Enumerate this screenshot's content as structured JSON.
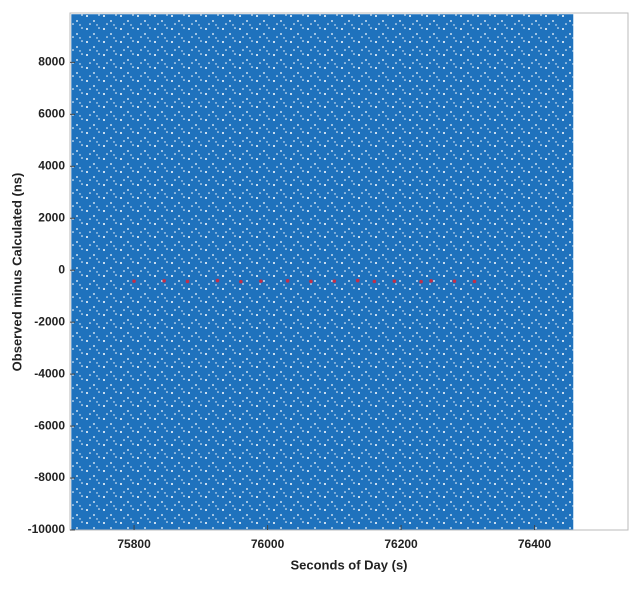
{
  "chart_data": {
    "type": "scatter",
    "xlabel": "Seconds of Day (s)",
    "ylabel": "Observed minus Calculated (ns)",
    "xlim": [
      75704,
      76540
    ],
    "ylim": [
      -10000,
      9900
    ],
    "xticks": [
      75800,
      76000,
      76200,
      76400
    ],
    "yticks": [
      -10000,
      -8000,
      -6000,
      -4000,
      -2000,
      0,
      2000,
      4000,
      6000,
      8000
    ],
    "series": [
      {
        "kind": "area",
        "color": "#1f72bd",
        "x": [
          75706,
          76458
        ],
        "values": [
          9850,
          9850
        ]
      },
      {
        "kind": "points",
        "color": "#c0304a",
        "x": [
          75800,
          75845,
          75880,
          75925,
          75960,
          75990,
          76030,
          76065,
          76100,
          76135,
          76160,
          76190,
          76230,
          76245,
          76280,
          76310
        ],
        "values": [
          -420,
          -410,
          -430,
          -400,
          -440,
          -420,
          -410,
          -430,
          -420,
          -400,
          -430,
          -420,
          -440,
          -410,
          -420,
          -430
        ]
      }
    ]
  }
}
